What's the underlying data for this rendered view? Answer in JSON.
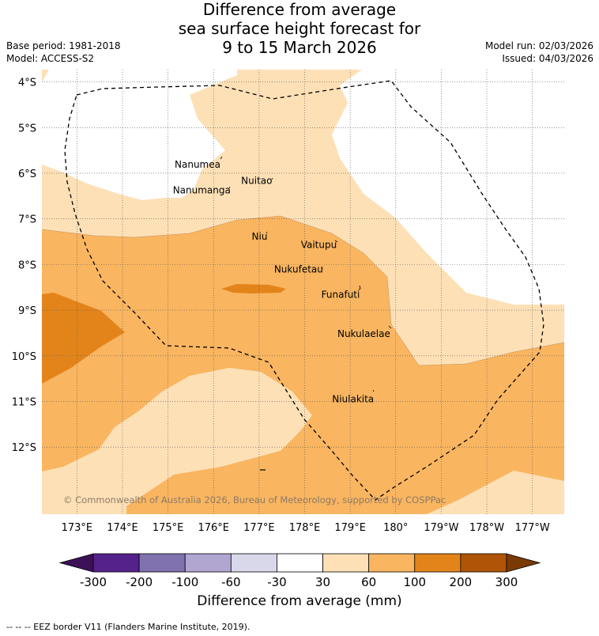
{
  "title": {
    "line1": "Difference from average",
    "line2": "sea surface height forecast for",
    "line3": "9 to 15 March 2026"
  },
  "meta": {
    "base_period": "Base period: 1981-2018",
    "model": "Model: ACCESS-S2",
    "model_run": "Model run: 02/03/2026",
    "issued": "Issued: 04/03/2026"
  },
  "map": {
    "lat_labels": [
      "4°S",
      "5°S",
      "6°S",
      "7°S",
      "8°S",
      "9°S",
      "10°S",
      "11°S",
      "12°S"
    ],
    "lon_labels": [
      "173°E",
      "174°E",
      "175°E",
      "176°E",
      "177°E",
      "178°E",
      "179°E",
      "180°",
      "179°W",
      "178°W",
      "177°W"
    ],
    "islands": [
      {
        "name": "Nanumea",
        "lon": 176.1,
        "lat": -5.67
      },
      {
        "name": "Nuitao",
        "lon": 177.3,
        "lat": -6.11
      },
      {
        "name": "Nanumanga",
        "lon": 176.32,
        "lat": -6.29
      },
      {
        "name": "Niu",
        "lon": 177.15,
        "lat": -7.3
      },
      {
        "name": "Vaitupu",
        "lon": 178.68,
        "lat": -7.48
      },
      {
        "name": "Nukufetau",
        "lon": 178.37,
        "lat": -8.0
      },
      {
        "name": "Funafuti",
        "lon": 179.2,
        "lat": -8.52
      },
      {
        "name": "Nukulaelae",
        "lon": 179.83,
        "lat": -9.38
      },
      {
        "name": "Niulakita",
        "lon": 179.47,
        "lat": -10.79
      }
    ],
    "copyright": "© Commonwealth of Australia 2026, Bureau of Meteorology, supported by COSPPac"
  },
  "colorbar": {
    "title": "Difference from average (mm)",
    "bins": [
      -300,
      -200,
      -100,
      -60,
      -30,
      30,
      60,
      100,
      200,
      300
    ],
    "colors": [
      "#3d1157",
      "#55218a",
      "#7f72ae",
      "#b0a6d0",
      "#d8d8ea",
      "#ffffff",
      "#fde0b6",
      "#f9b560",
      "#e3841a",
      "#b05507",
      "#7a3a06"
    ],
    "labels": [
      "-300",
      "-200",
      "-100",
      "-60",
      "-30",
      "30",
      "60",
      "100",
      "200",
      "300"
    ]
  },
  "footer": "--  --  -- EEZ border V11 (Flanders Marine Institute, 2019)."
}
